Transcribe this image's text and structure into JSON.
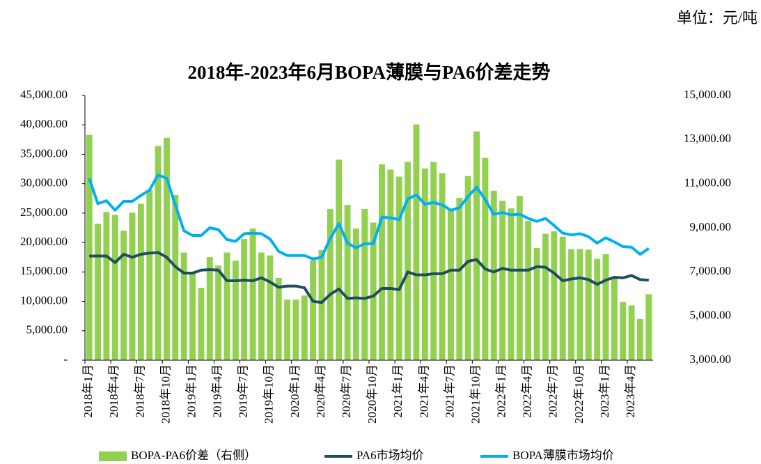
{
  "chart_data": {
    "type": "bar-line",
    "title": "2018年-2023年6月BOPA薄膜与PA6价差走势",
    "unit_note": "单位：元/吨",
    "categories": [
      "2018年1月",
      null,
      null,
      "2018年4月",
      null,
      null,
      "2018年7月",
      null,
      null,
      "2018年10月",
      null,
      null,
      "2019年1月",
      null,
      null,
      "2019年4月",
      null,
      null,
      "2019年7月",
      null,
      null,
      "2019年10月",
      null,
      null,
      "2020年1月",
      null,
      null,
      "2020年4月",
      null,
      null,
      "2020年7月",
      null,
      null,
      "2020年10月",
      null,
      null,
      "2021年1月",
      null,
      null,
      "2021年4月",
      null,
      null,
      "2021年7月",
      null,
      null,
      "2021年10月",
      null,
      null,
      "2022年1月",
      null,
      null,
      "2022年4月",
      null,
      null,
      "2022年7月",
      null,
      null,
      "2022年10月",
      null,
      null,
      "2023年1月",
      null,
      null,
      "2023年4月",
      null,
      null
    ],
    "series": [
      {
        "name": "BOPA-PA6价差（右侧）",
        "kind": "bar",
        "axis": "y2",
        "color": "#92d050",
        "values": [
          13210,
          9190,
          9720,
          9590,
          8870,
          9690,
          10090,
          10710,
          12710,
          13080,
          10490,
          7880,
          7000,
          6280,
          7670,
          7290,
          7880,
          7510,
          8490,
          8970,
          7880,
          7750,
          6730,
          5750,
          5750,
          5930,
          7530,
          7990,
          9850,
          12090,
          10040,
          8970,
          9850,
          9240,
          11880,
          11640,
          11320,
          11990,
          13690,
          11690,
          11990,
          11480,
          9800,
          10360,
          11350,
          13370,
          12170,
          10680,
          10230,
          9880,
          10440,
          9320,
          8090,
          8730,
          8840,
          8600,
          8040,
          8040,
          8010,
          7590,
          7800,
          6790,
          5640,
          5480,
          4870,
          5990
        ]
      },
      {
        "name": "PA6市场均价",
        "kind": "line",
        "color": "#1f4e5f",
        "values": [
          17700,
          17700,
          17700,
          16600,
          18000,
          17500,
          18000,
          18200,
          18300,
          17500,
          15900,
          14800,
          14800,
          15300,
          15400,
          15300,
          13500,
          13500,
          13600,
          13500,
          14000,
          13300,
          12400,
          12600,
          12600,
          12300,
          10000,
          9800,
          11200,
          12100,
          10500,
          10600,
          10500,
          10900,
          12200,
          12200,
          12000,
          15000,
          14500,
          14500,
          14700,
          14700,
          15300,
          15300,
          16800,
          17100,
          15500,
          15000,
          15600,
          15300,
          15300,
          15300,
          15900,
          15800,
          14800,
          13500,
          13800,
          14000,
          13700,
          12900,
          13600,
          14100,
          14000,
          14400,
          13700,
          13600
        ]
      },
      {
        "name": "BOPA薄膜市场均价",
        "kind": "line",
        "color": "#00b0f0",
        "values": [
          30900,
          26600,
          27100,
          25500,
          27000,
          27000,
          28000,
          28900,
          31500,
          30900,
          26400,
          22000,
          21200,
          21200,
          22500,
          22200,
          20500,
          20200,
          21500,
          21600,
          21500,
          20600,
          18500,
          17800,
          17800,
          17800,
          17200,
          17500,
          20700,
          23200,
          19900,
          19100,
          19800,
          19800,
          24300,
          24200,
          23900,
          27400,
          28100,
          26500,
          26800,
          26400,
          25500,
          25900,
          27800,
          29400,
          27300,
          24800,
          25100,
          24700,
          24800,
          24100,
          23600,
          24100,
          22900,
          21600,
          21300,
          21500,
          21000,
          19900,
          20800,
          20100,
          19300,
          19200,
          18000,
          19000
        ]
      }
    ],
    "ylim": [
      0,
      45000
    ],
    "yticks": [
      {
        "value": 0,
        "label": "-"
      },
      {
        "value": 5000,
        "label": "5,000.00"
      },
      {
        "value": 10000,
        "label": "10,000.00"
      },
      {
        "value": 15000,
        "label": "15,000.00"
      },
      {
        "value": 20000,
        "label": "20,000.00"
      },
      {
        "value": 25000,
        "label": "25,000.00"
      },
      {
        "value": 30000,
        "label": "30,000.00"
      },
      {
        "value": 35000,
        "label": "35,000.00"
      },
      {
        "value": 40000,
        "label": "40,000.00"
      },
      {
        "value": 45000,
        "label": "45,000.00"
      }
    ],
    "y2lim": [
      3000,
      15000
    ],
    "y2ticks": [
      {
        "value": 3000,
        "label": "3,000.00"
      },
      {
        "value": 5000,
        "label": "5,000.00"
      },
      {
        "value": 7000,
        "label": "7,000.00"
      },
      {
        "value": 9000,
        "label": "9,000.00"
      },
      {
        "value": 11000,
        "label": "11,000.00"
      },
      {
        "value": 13000,
        "label": "13,000.00"
      },
      {
        "value": 15000,
        "label": "15,000.00"
      }
    ],
    "legend": "bottom"
  }
}
